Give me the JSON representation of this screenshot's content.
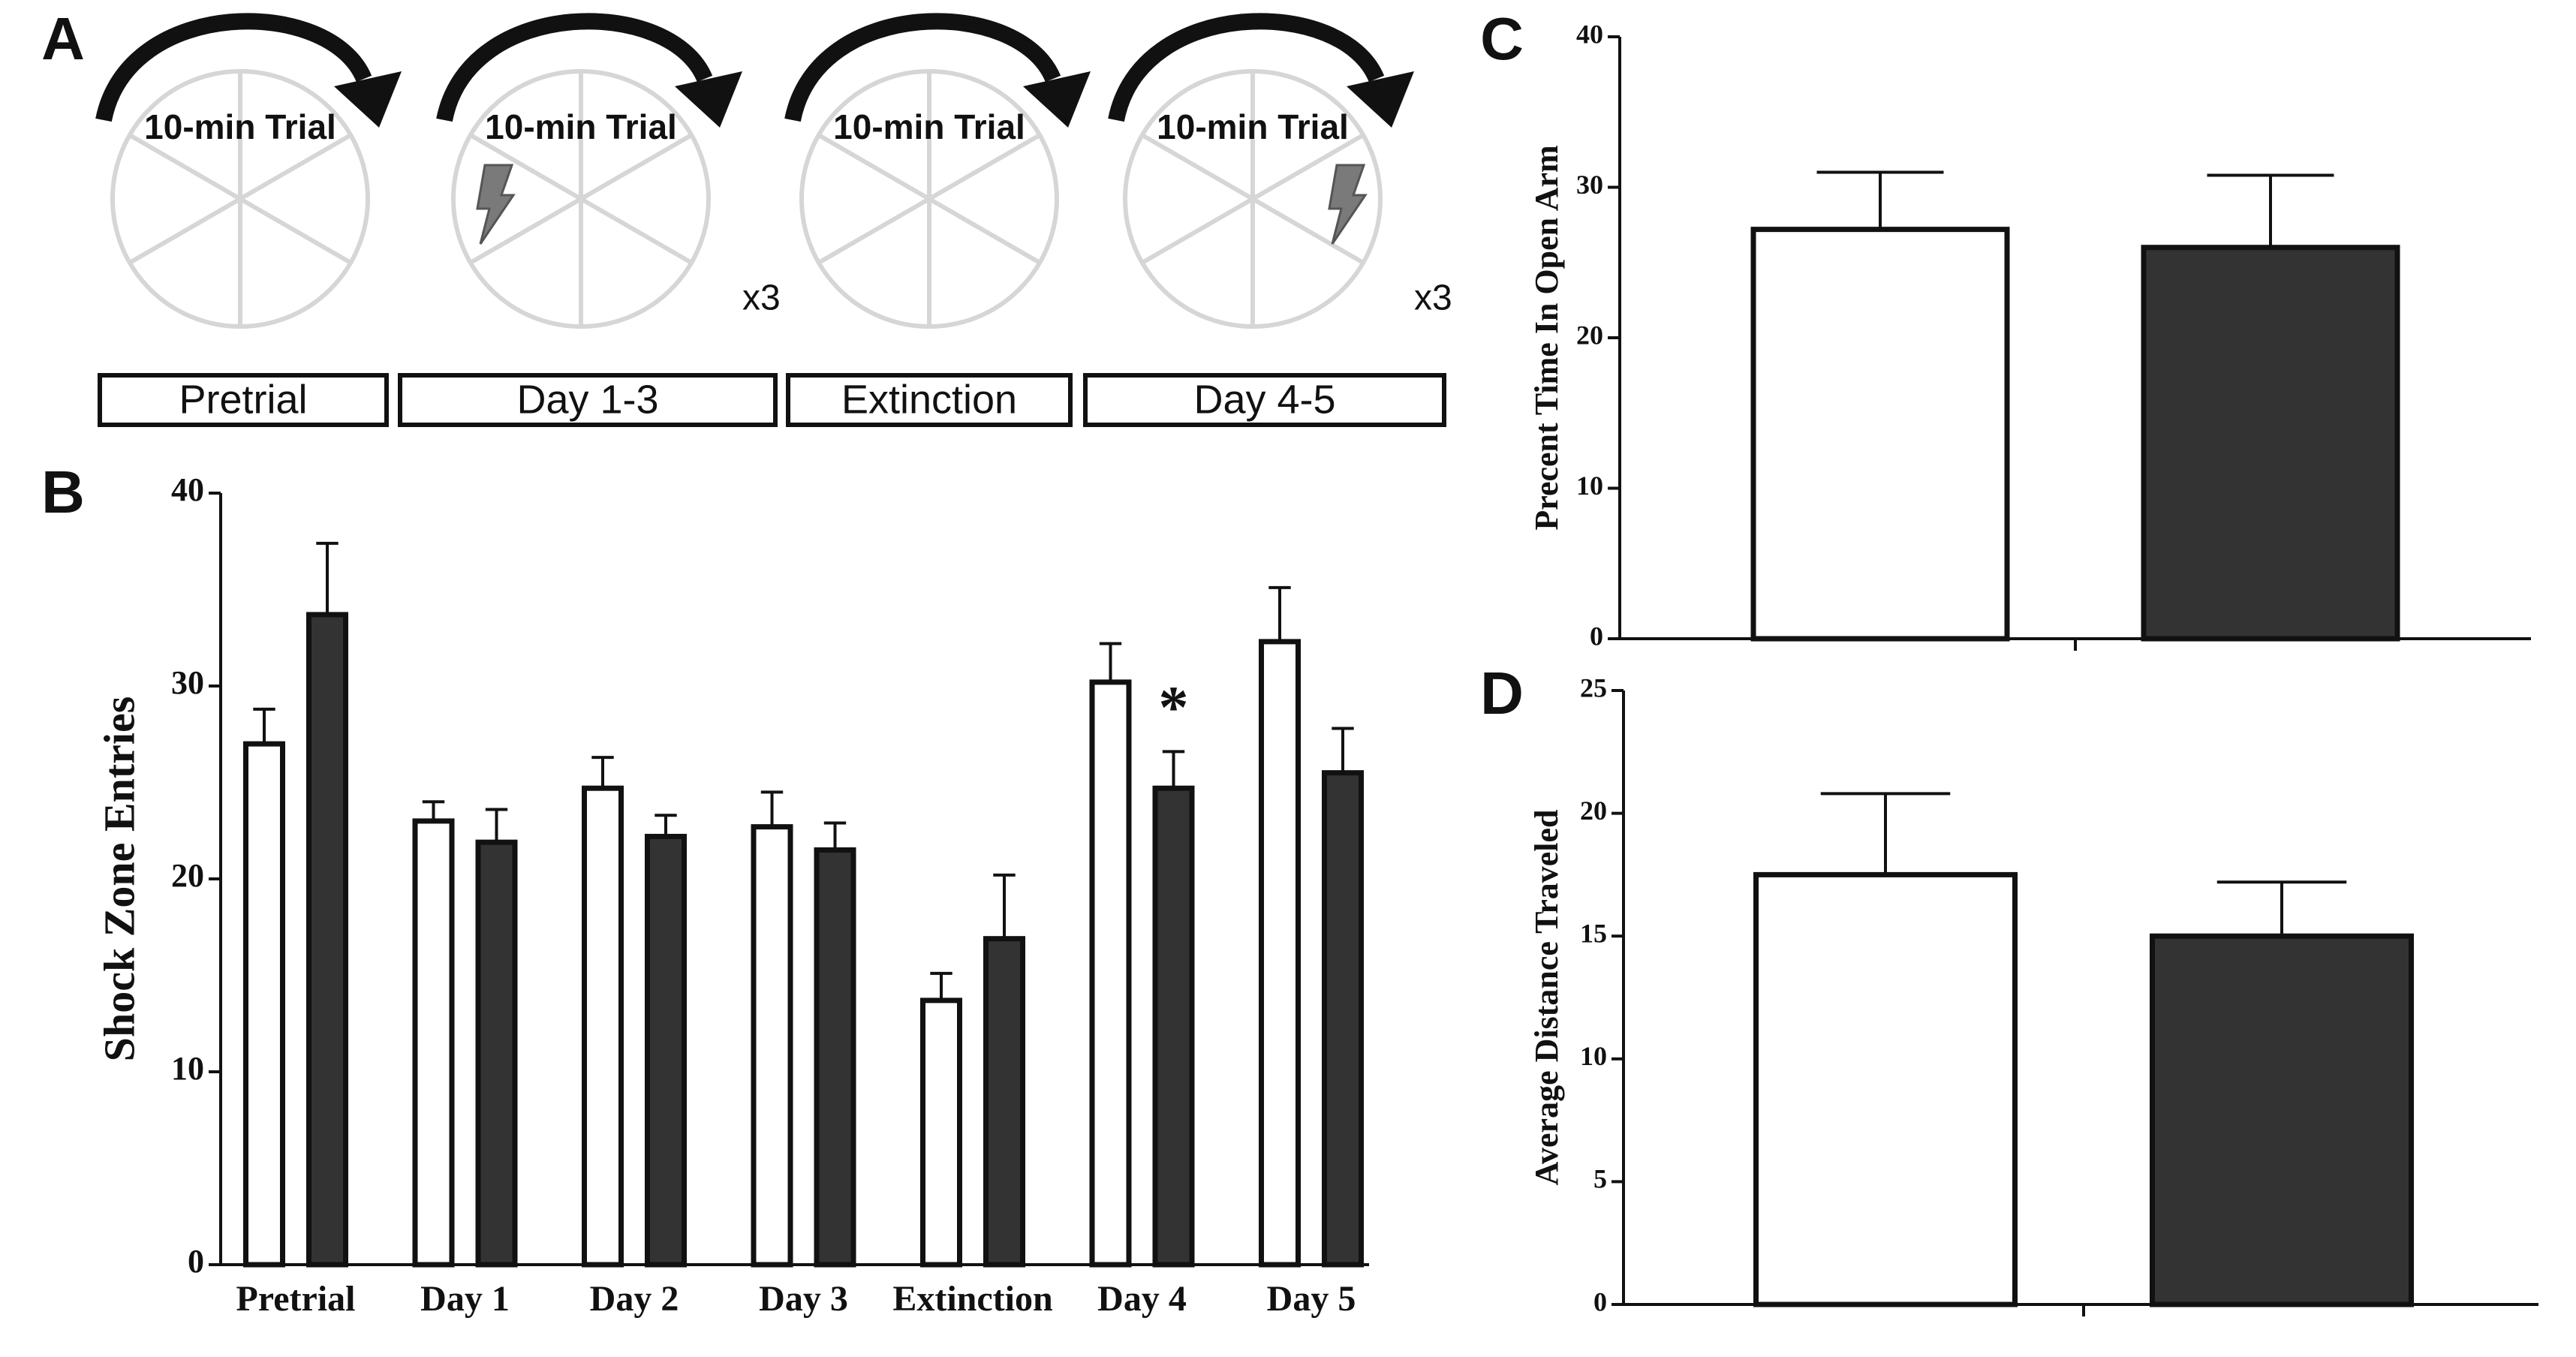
{
  "panels": [
    "A",
    "B",
    "C",
    "D"
  ],
  "diagram": {
    "trials": [
      {
        "label": "10-min Trial",
        "shock": "none"
      },
      {
        "label": "10-min Trial",
        "shock": "left",
        "repeat": "x3"
      },
      {
        "label": "10-min Trial",
        "shock": "none"
      },
      {
        "label": "10-min Trial",
        "shock": "right",
        "repeat": "x3"
      }
    ],
    "phases": [
      "Pretrial",
      "Day 1-3",
      "Extinction",
      "Day 4-5"
    ]
  },
  "chart_data": [
    {
      "type": "bar",
      "ylabel": "Shock Zone Entries",
      "categories": [
        "Pretrial",
        "Day 1",
        "Day 2",
        "Day 3",
        "Extinction",
        "Day 4",
        "Day 5"
      ],
      "series": [
        {
          "color": "#ffffff",
          "values": [
            27,
            23,
            24.7,
            22.7,
            13.7,
            30.2,
            32.3
          ],
          "errors": [
            1.8,
            1,
            1.6,
            1.8,
            1.4,
            2,
            2.8
          ]
        },
        {
          "color": "#333333",
          "values": [
            33.7,
            21.9,
            22.2,
            21.5,
            16.9,
            24.7,
            25.5
          ],
          "errors": [
            3.7,
            1.7,
            1.1,
            1.4,
            3.3,
            1.9,
            2.3
          ]
        }
      ],
      "annotations": [
        {
          "text": "*",
          "category": 5,
          "series": 1
        }
      ],
      "ylim": [
        0,
        40
      ],
      "yticks": [
        0,
        10,
        20,
        30,
        40
      ]
    },
    {
      "type": "bar",
      "ylabel": "Precent Time In Open Arm",
      "series": [
        {
          "color": "#ffffff",
          "values": [
            27.2
          ],
          "errors": [
            3.8
          ]
        },
        {
          "color": "#333333",
          "values": [
            26
          ],
          "errors": [
            4.8
          ]
        }
      ],
      "ylim": [
        0,
        40
      ],
      "yticks": [
        0,
        10,
        20,
        30,
        40
      ]
    },
    {
      "type": "bar",
      "ylabel": "Average Distance Traveled",
      "series": [
        {
          "color": "#ffffff",
          "values": [
            17.5
          ],
          "errors": [
            3.3
          ]
        },
        {
          "color": "#333333",
          "values": [
            15
          ],
          "errors": [
            2.2
          ]
        }
      ],
      "ylim": [
        0,
        25
      ],
      "yticks": [
        0,
        5,
        10,
        15,
        20,
        25
      ]
    }
  ]
}
